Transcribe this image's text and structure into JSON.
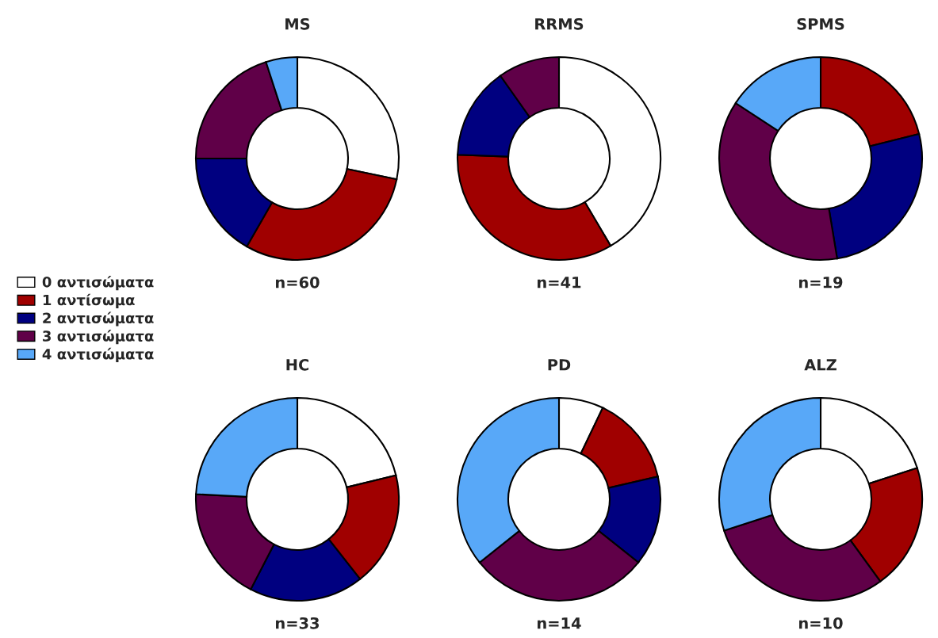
{
  "chart_data": [
    {
      "type": "donut",
      "title": "MS",
      "categories": [
        "0 αντισώματα",
        "1 αντίσωμα",
        "2 αντισώματα",
        "3 αντισώματα",
        "4 αντισώματα"
      ],
      "values": [
        28.3,
        30,
        16.7,
        20,
        5
      ],
      "colors": [
        "#ffffff",
        "#a00000",
        "#000080",
        "#600048",
        "#58a8f8"
      ],
      "annotations": [
        "n=60"
      ],
      "legend": "left"
    },
    {
      "type": "donut",
      "title": "RRMS",
      "categories": [
        null,
        null,
        null,
        null,
        null
      ],
      "values": [
        41.5,
        34.1,
        14.6,
        9.8,
        0
      ],
      "colors": [
        "#ffffff",
        "#a00000",
        "#000080",
        "#600048",
        "#58a8f8"
      ],
      "annotations": [
        "n=41"
      ]
    },
    {
      "type": "donut",
      "title": "SPMS",
      "categories": [
        null,
        null,
        null,
        null,
        null
      ],
      "values": [
        0,
        21.1,
        26.3,
        36.8,
        15.8
      ],
      "colors": [
        "#ffffff",
        "#a00000",
        "#000080",
        "#600048",
        "#58a8f8"
      ],
      "annotations": [
        "n=19"
      ]
    },
    {
      "type": "donut",
      "title": "HC",
      "categories": [
        null,
        null,
        null,
        null,
        null
      ],
      "values": [
        21.2,
        18.2,
        18.2,
        18.2,
        24.2
      ],
      "colors": [
        "#ffffff",
        "#a00000",
        "#000080",
        "#600048",
        "#58a8f8"
      ],
      "annotations": [
        "n=33"
      ]
    },
    {
      "type": "donut",
      "title": "PD",
      "categories": [
        null,
        null,
        null,
        null,
        null
      ],
      "values": [
        7.1,
        14.3,
        14.3,
        28.6,
        35.7
      ],
      "colors": [
        "#ffffff",
        "#a00000",
        "#000080",
        "#600048",
        "#58a8f8"
      ],
      "annotations": [
        "n=14"
      ]
    },
    {
      "type": "donut",
      "title": "ALZ",
      "categories": [
        null,
        null,
        null,
        null,
        null
      ],
      "values": [
        20,
        20,
        0,
        30,
        30
      ],
      "colors": [
        "#ffffff",
        "#a00000",
        "#000080",
        "#600048",
        "#58a8f8"
      ],
      "annotations": [
        "n=10"
      ]
    }
  ]
}
